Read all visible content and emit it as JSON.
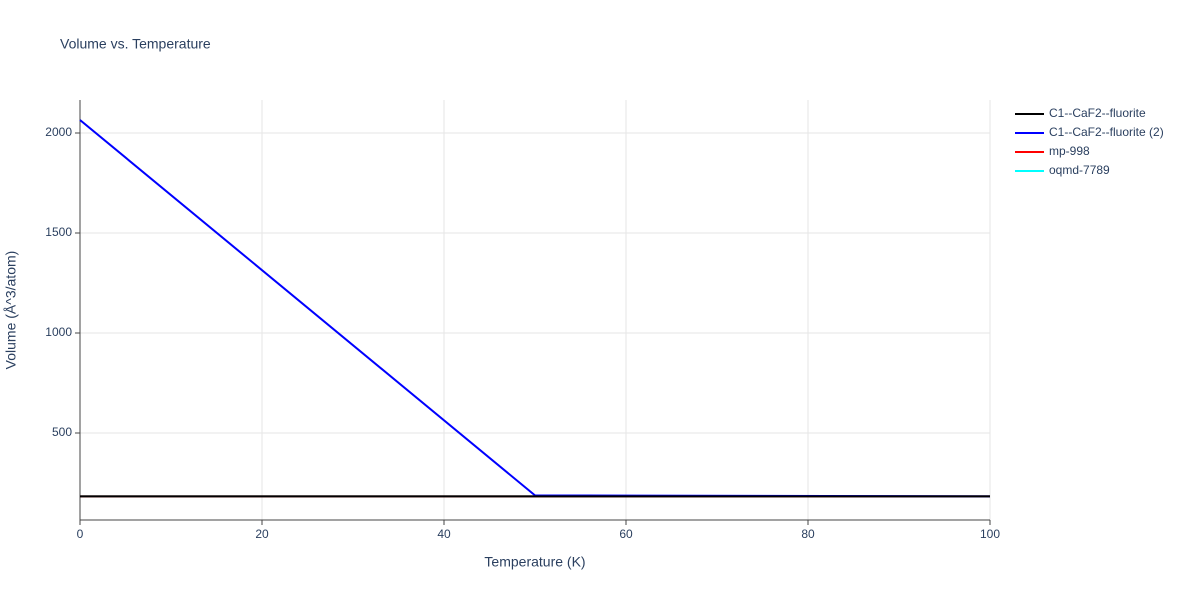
{
  "chart_data": {
    "type": "line",
    "title": "Volume vs. Temperature",
    "x_label": "Temperature (K)",
    "y_label": "Volume (Å^3/atom)",
    "x": [
      0,
      50,
      100
    ],
    "series": [
      {
        "name": "C1--CaF2--fluorite",
        "color": "#000000",
        "values": [
          183,
          183,
          183
        ]
      },
      {
        "name": "C1--CaF2--fluorite (2)",
        "color": "#0000ff",
        "values": [
          2065,
          188,
          183
        ]
      },
      {
        "name": "mp-998",
        "color": "#ff0000",
        "values": [
          183,
          183,
          183
        ]
      },
      {
        "name": "oqmd-7789",
        "color": "#00ffff",
        "values": [
          183,
          183,
          183
        ]
      }
    ],
    "xlim": [
      0,
      100
    ],
    "xticks": [
      0,
      20,
      40,
      60,
      80,
      100
    ],
    "ylim": [
      65,
      2165
    ],
    "yticks": [
      500,
      1000,
      1500,
      2000
    ],
    "grid": true,
    "legend": "right"
  }
}
